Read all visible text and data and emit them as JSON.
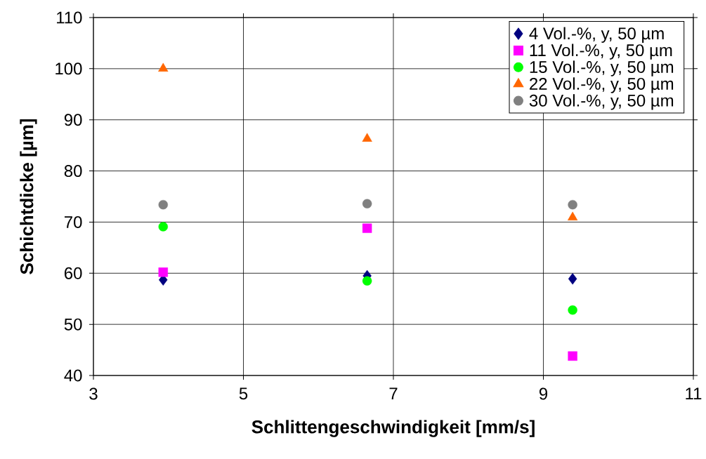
{
  "chart_data": {
    "type": "scatter",
    "xlabel": "Schlittengeschwindigkeit [mm/s]",
    "ylabel": "Schichtdicke [µm]",
    "x": [
      3.93,
      6.65,
      9.39
    ],
    "series": [
      {
        "name": "4 Vol.-%, y, 50 µm",
        "color": "#000080",
        "marker": "diamond",
        "values": [
          58.7,
          59.5,
          58.9
        ]
      },
      {
        "name": "11 Vol.-%, y, 50 µm",
        "color": "#ff00ff",
        "marker": "square",
        "values": [
          60.2,
          68.8,
          43.8
        ]
      },
      {
        "name": "15 Vol.-%, y, 50 µm",
        "color": "#00ff00",
        "marker": "circle",
        "values": [
          69.1,
          58.5,
          52.8
        ]
      },
      {
        "name": "22 Vol.-%, y, 50 µm",
        "color": "#ff6600",
        "marker": "triangle",
        "values": [
          100,
          86.3,
          70.9
        ]
      },
      {
        "name": "30 Vol.-%, y, 50 µm",
        "color": "#808080",
        "marker": "circle",
        "values": [
          73.4,
          73.6,
          73.4
        ]
      }
    ],
    "xlim": [
      3,
      11
    ],
    "xticks": [
      3,
      5,
      7,
      9,
      11
    ],
    "ylim": [
      40,
      110
    ],
    "yticks": [
      40,
      50,
      60,
      70,
      80,
      90,
      100,
      110
    ],
    "grid": true,
    "legend": "top right"
  }
}
